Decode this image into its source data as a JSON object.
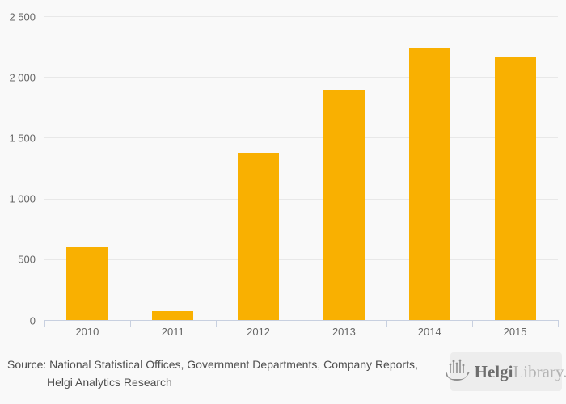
{
  "chart_data": {
    "type": "bar",
    "title": "",
    "xlabel": "",
    "ylabel": "",
    "categories": [
      "2010",
      "2011",
      "2012",
      "2013",
      "2014",
      "2015"
    ],
    "values": [
      600,
      75,
      1375,
      1895,
      2240,
      2165
    ],
    "ylim": [
      0,
      2500
    ],
    "yticks": [
      {
        "value": 0,
        "label": "0"
      },
      {
        "value": 500,
        "label": "500"
      },
      {
        "value": 1000,
        "label": "1 000"
      },
      {
        "value": 1500,
        "label": "1 500"
      },
      {
        "value": 2000,
        "label": "2 000"
      },
      {
        "value": 2500,
        "label": "2 500"
      }
    ],
    "grid": true,
    "legend": false,
    "bar_color": "#f9b001"
  },
  "colors": {
    "background": "#f9f9f9",
    "gridline": "#e8e8e8",
    "axis": "#c8d0e0",
    "axis_text": "#666666",
    "source_text": "#4e4e4e",
    "bar": "#f9b001"
  },
  "footer": {
    "source_line1": "Source: National Statistical Offices, Government Departments, Company Reports,",
    "source_line2": "Helgi Analytics Research"
  },
  "logo": {
    "icon": "helgi-ship-icon",
    "brand_bold": "Helgi",
    "brand_light": "Library."
  }
}
